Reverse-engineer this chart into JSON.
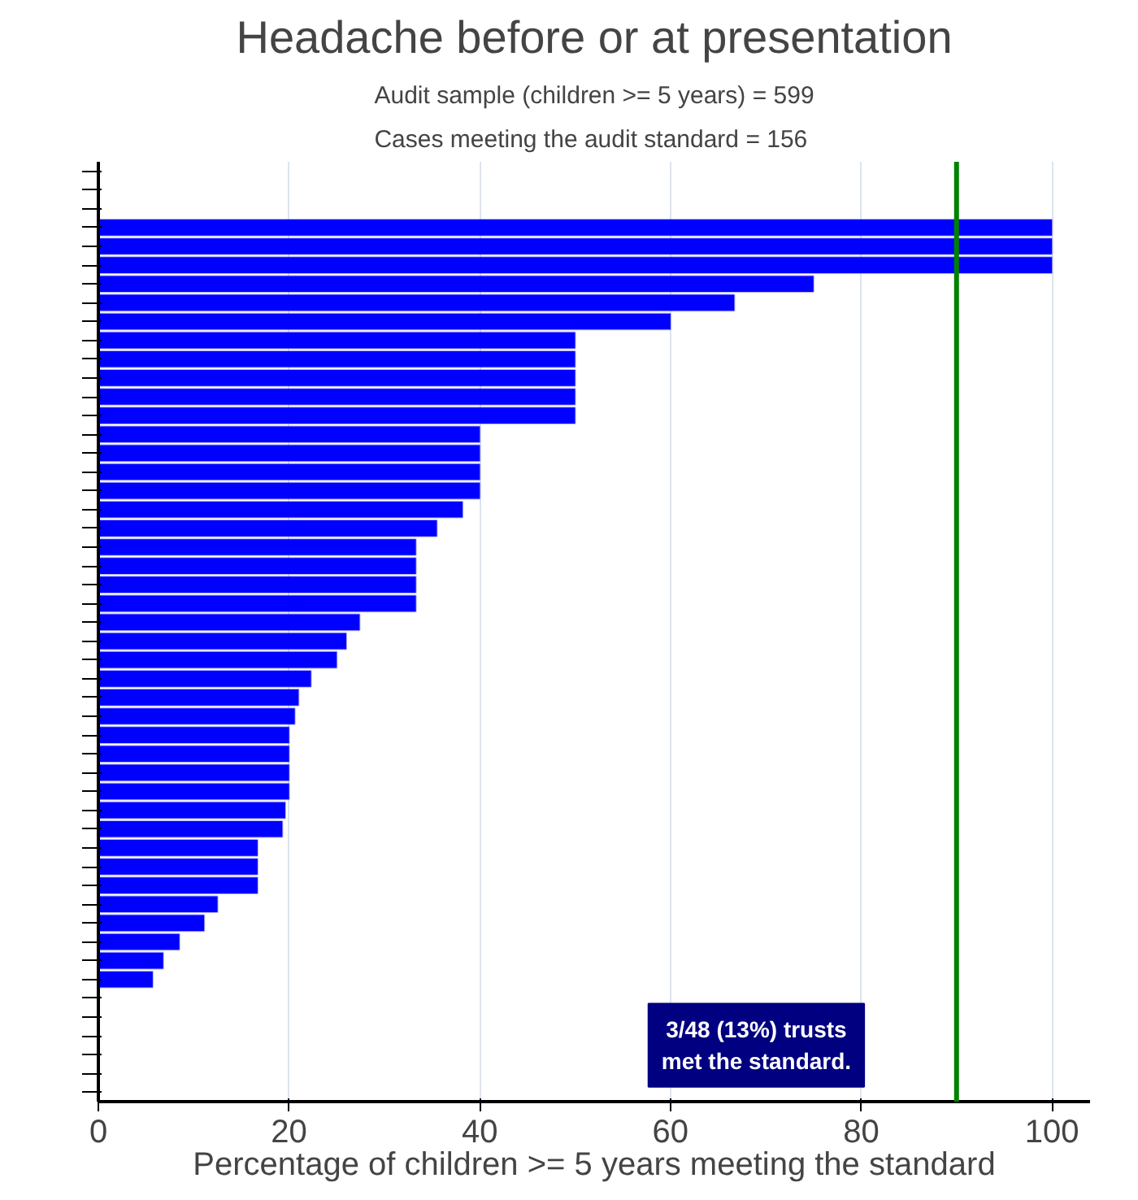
{
  "chart_data": {
    "type": "bar",
    "orientation": "horizontal",
    "title": "Headache before or at presentation",
    "subtitle": "Audit sample (children >= 5 years) = 599\nCases meeting the audit standard = 156",
    "xlabel": "Percentage of children >= 5 years meeting the standard",
    "categories": [
      null,
      null,
      null,
      null,
      null,
      null,
      null,
      null,
      null,
      null,
      null,
      null,
      null,
      null,
      null,
      null,
      null,
      null,
      null,
      null,
      null,
      null,
      null,
      null,
      null,
      null,
      null,
      null,
      null,
      null,
      null,
      null,
      null,
      null,
      null,
      null,
      null,
      null,
      null,
      null,
      null,
      null,
      null,
      null,
      null,
      null,
      null,
      null,
      null,
      null
    ],
    "values": [
      null,
      null,
      null,
      100,
      100,
      100,
      75,
      66.7,
      60,
      50,
      50,
      50,
      50,
      50,
      40,
      40,
      40,
      40,
      38.2,
      35.5,
      33.3,
      33.3,
      33.3,
      33.3,
      27.4,
      26,
      25,
      22.3,
      21,
      20.6,
      20,
      20,
      20,
      20,
      19.6,
      19.3,
      16.7,
      16.7,
      16.7,
      12.5,
      11.1,
      8.5,
      6.8,
      5.7,
      null,
      null,
      null,
      null,
      null,
      null
    ],
    "color": "#0000ff",
    "xlim": [
      0,
      104
    ],
    "xticks": [
      0,
      20,
      40,
      60,
      80,
      100
    ],
    "grid": "x",
    "ref_lines": [
      {
        "axis": "x",
        "value": 90,
        "color": "#008000"
      }
    ],
    "annotations": [
      "3/48 (13%) trusts\nmet the standard."
    ]
  }
}
